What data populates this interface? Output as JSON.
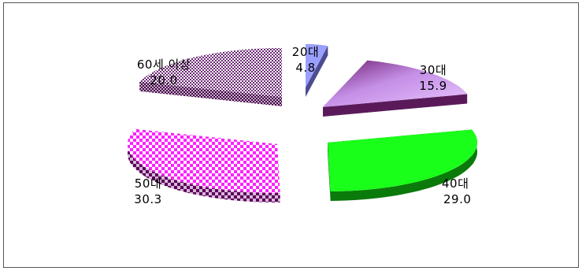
{
  "chart_data": {
    "type": "pie",
    "style": "3d-exploded",
    "title": "",
    "categories": [
      "20대",
      "30대",
      "40대",
      "50대",
      "60세 이상"
    ],
    "values": [
      4.8,
      15.9,
      29.0,
      30.3,
      20.0
    ],
    "value_labels": [
      "4.8",
      "15.9",
      "29.0",
      "30.3",
      "20.0"
    ],
    "colors": [
      "#9aa0ff",
      "#c88ee8",
      "#1aff1a",
      "#ff2dff",
      "#c9a0c9"
    ],
    "fill_patterns": [
      "solid",
      "gradient",
      "solid",
      "checker",
      "checker"
    ],
    "legend": "none"
  }
}
